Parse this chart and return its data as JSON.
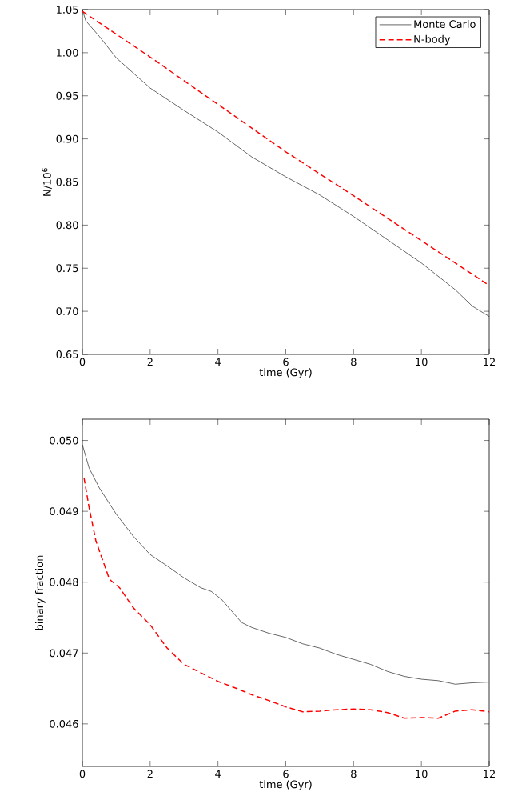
{
  "chart_data": [
    {
      "type": "line",
      "xlabel": "time (Gyr)",
      "ylabel": "N/10$^{6}$",
      "xlim": [
        0,
        12
      ],
      "ylim": [
        0.65,
        1.05
      ],
      "xticks": [
        0,
        2,
        4,
        6,
        8,
        10,
        12
      ],
      "yticks": [
        {
          "value": 0.65,
          "label": "0.65"
        },
        {
          "value": 0.7,
          "label": "0.70"
        },
        {
          "value": 0.75,
          "label": "0.75"
        },
        {
          "value": 0.8,
          "label": "0.80"
        },
        {
          "value": 0.85,
          "label": "0.85"
        },
        {
          "value": 0.9,
          "label": "0.90"
        },
        {
          "value": 0.95,
          "label": "0.95"
        },
        {
          "value": 1.0,
          "label": "1.00"
        },
        {
          "value": 1.05,
          "label": "1.05"
        }
      ],
      "legend": "top right",
      "grid": false,
      "series": [
        {
          "name": "Monte Carlo",
          "color": "#000000",
          "line_style": "solid",
          "x": [
            0,
            0.1,
            0.5,
            1,
            2,
            3,
            4,
            5,
            6,
            7,
            8,
            9,
            10,
            11,
            11.5,
            12
          ],
          "values": [
            1.05,
            1.037,
            1.019,
            0.994,
            0.959,
            0.933,
            0.908,
            0.879,
            0.856,
            0.835,
            0.81,
            0.783,
            0.756,
            0.725,
            0.706,
            0.694
          ]
        },
        {
          "name": "N-body",
          "color": "#ff0000",
          "line_style": "dashed",
          "x": [
            0,
            2,
            4,
            6,
            8,
            10,
            12
          ],
          "values": [
            1.048,
            0.995,
            0.94,
            0.885,
            0.834,
            0.782,
            0.73
          ]
        }
      ]
    },
    {
      "type": "line",
      "xlabel": "time (Gyr)",
      "ylabel": "binary fraction",
      "xlim": [
        0,
        12
      ],
      "ylim": [
        0.0454,
        0.0503
      ],
      "xticks": [
        0,
        2,
        4,
        6,
        8,
        10,
        12
      ],
      "yticks": [
        {
          "value": 0.046,
          "label": "0.046"
        },
        {
          "value": 0.047,
          "label": "0.047"
        },
        {
          "value": 0.048,
          "label": "0.048"
        },
        {
          "value": 0.049,
          "label": "0.049"
        },
        {
          "value": 0.05,
          "label": "0.050"
        }
      ],
      "grid": false,
      "series": [
        {
          "color": "#000000",
          "line_style": "solid",
          "x": [
            0,
            0.2,
            0.5,
            1,
            1.5,
            2,
            2.5,
            3,
            3.5,
            3.8,
            4.1,
            4.5,
            4.7,
            5,
            5.5,
            6,
            6.5,
            7,
            7.5,
            8,
            8.5,
            9,
            9.5,
            10,
            10.5,
            11,
            11.5,
            12
          ],
          "values": [
            0.04994,
            0.04961,
            0.04933,
            0.04896,
            0.04865,
            0.04839,
            0.04823,
            0.04806,
            0.04792,
            0.04787,
            0.04776,
            0.04754,
            0.04743,
            0.04736,
            0.04728,
            0.04722,
            0.04713,
            0.04707,
            0.04698,
            0.04691,
            0.04684,
            0.04674,
            0.04667,
            0.04663,
            0.04661,
            0.04656,
            0.04658,
            0.04659
          ]
        },
        {
          "color": "#ff0000",
          "line_style": "dashed",
          "x": [
            0.05,
            0.2,
            0.4,
            0.8,
            1.1,
            1.5,
            2,
            2.5,
            3,
            3.5,
            4,
            4.5,
            5,
            5.5,
            6,
            6.5,
            7,
            7.5,
            8,
            8.5,
            9,
            9.5,
            10,
            10.5,
            11,
            11.5,
            12
          ],
          "values": [
            0.04947,
            0.04905,
            0.04858,
            0.04804,
            0.04792,
            0.04764,
            0.0474,
            0.04707,
            0.04684,
            0.04672,
            0.0466,
            0.04651,
            0.04641,
            0.04633,
            0.04624,
            0.04617,
            0.04618,
            0.0462,
            0.04621,
            0.0462,
            0.04616,
            0.04608,
            0.04609,
            0.04608,
            0.04618,
            0.0462,
            0.04617
          ]
        }
      ]
    }
  ]
}
